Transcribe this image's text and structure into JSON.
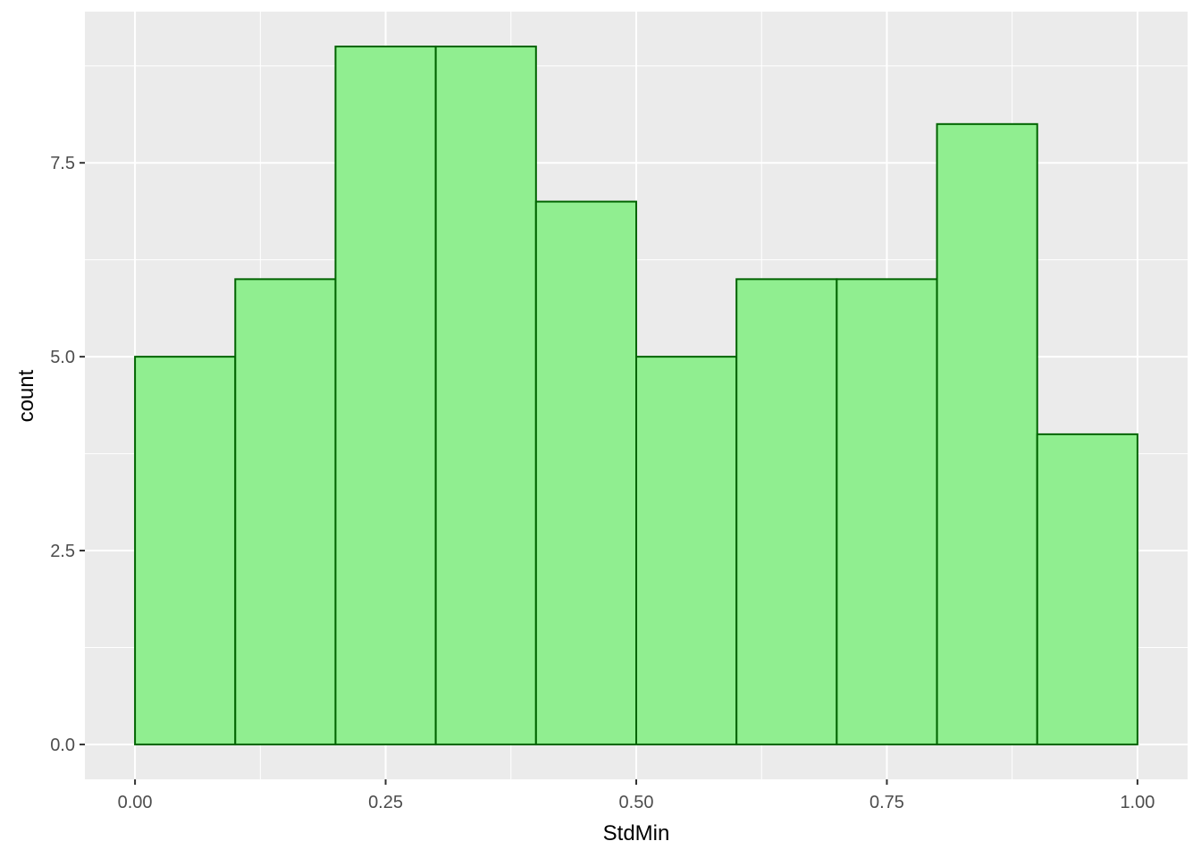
{
  "chart_data": {
    "type": "bar",
    "subtype": "histogram",
    "bins": [
      [
        0.0,
        0.1
      ],
      [
        0.1,
        0.2
      ],
      [
        0.2,
        0.3
      ],
      [
        0.3,
        0.4
      ],
      [
        0.4,
        0.5
      ],
      [
        0.5,
        0.6
      ],
      [
        0.6,
        0.7
      ],
      [
        0.7,
        0.8
      ],
      [
        0.8,
        0.9
      ],
      [
        0.9,
        1.0
      ]
    ],
    "values": [
      5,
      6,
      9,
      9,
      7,
      5,
      6,
      6,
      8,
      4
    ],
    "xlabel": "StdMin",
    "ylabel": "count",
    "xlim": [
      -0.05,
      1.05
    ],
    "ylim": [
      -0.45,
      9.45
    ],
    "xticks": [
      0,
      0.25,
      0.5,
      0.75,
      1
    ],
    "xtick_labels": [
      "0.00",
      "0.25",
      "0.50",
      "0.75",
      "1.00"
    ],
    "yticks": [
      0,
      2.5,
      5,
      7.5
    ],
    "ytick_labels": [
      "0.0",
      "2.5",
      "5.0",
      "7.5"
    ],
    "grid": true,
    "colors": {
      "fill": "#90EE90",
      "outline": "#006400",
      "panel": "#EBEBEB",
      "grid": "#FFFFFF"
    }
  }
}
